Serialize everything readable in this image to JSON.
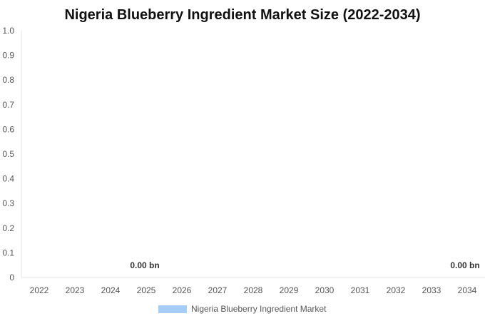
{
  "chart_data": {
    "type": "bar",
    "title": "Nigeria Blueberry Ingredient Market Size (2022-2034)",
    "xlabel": "",
    "ylabel": "",
    "categories": [
      "2022",
      "2023",
      "2024",
      "2025",
      "2026",
      "2027",
      "2028",
      "2029",
      "2030",
      "2031",
      "2032",
      "2033",
      "2034"
    ],
    "series": [
      {
        "name": "Nigeria Blueberry Ingredient Market",
        "color": "#a6cdf5",
        "values": [
          0,
          0,
          0,
          0,
          0,
          0,
          0,
          0,
          0,
          0,
          0,
          0,
          0
        ]
      }
    ],
    "y_ticks": [
      "0",
      "0.1",
      "0.2",
      "0.3",
      "0.4",
      "0.5",
      "0.6",
      "0.7",
      "0.8",
      "0.9",
      "1.0"
    ],
    "ylim": [
      0,
      1
    ],
    "data_labels": [
      {
        "category": "2025",
        "text": "0.00 bn"
      },
      {
        "category": "2034",
        "text": "0.00 bn"
      }
    ],
    "grid": false,
    "legend_position": "bottom"
  }
}
